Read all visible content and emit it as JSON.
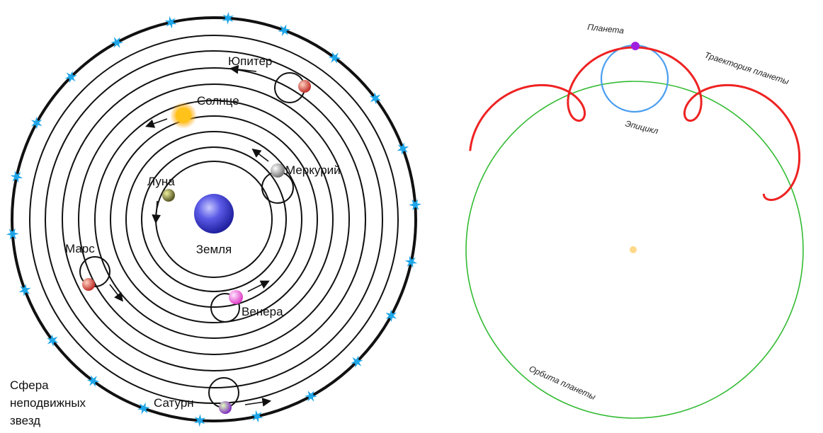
{
  "left_diagram": {
    "earth_label": "Земля",
    "moon_label": "Луна",
    "mercury_label": "Меркурий",
    "venus_label": "Венера",
    "sun_label": "Солнце",
    "mars_label": "Марс",
    "jupiter_label": "Юпитер",
    "saturn_label": "Сатурн",
    "fixed_stars_label": [
      "Сфера",
      "неподвижных",
      "звезд"
    ],
    "colors": {
      "earth": "#4a4ad8",
      "sun": "#ffc21a",
      "star": "#1fa6e8",
      "orbit": "#111111"
    },
    "icons": [
      "star-icon",
      "planet-icon",
      "direction-arrow-icon"
    ]
  },
  "right_diagram": {
    "planet_label": "Планета",
    "trajectory_label": "Траектория планеты",
    "epicycle_label": "Эпицикл",
    "orbit_label": "Орбита планеты",
    "colors": {
      "deferent": "#33bb33",
      "epicycle": "#4a9ef0",
      "trajectory": "#ee2222",
      "planet": "#a020e0",
      "center": "#ffd98a"
    }
  }
}
